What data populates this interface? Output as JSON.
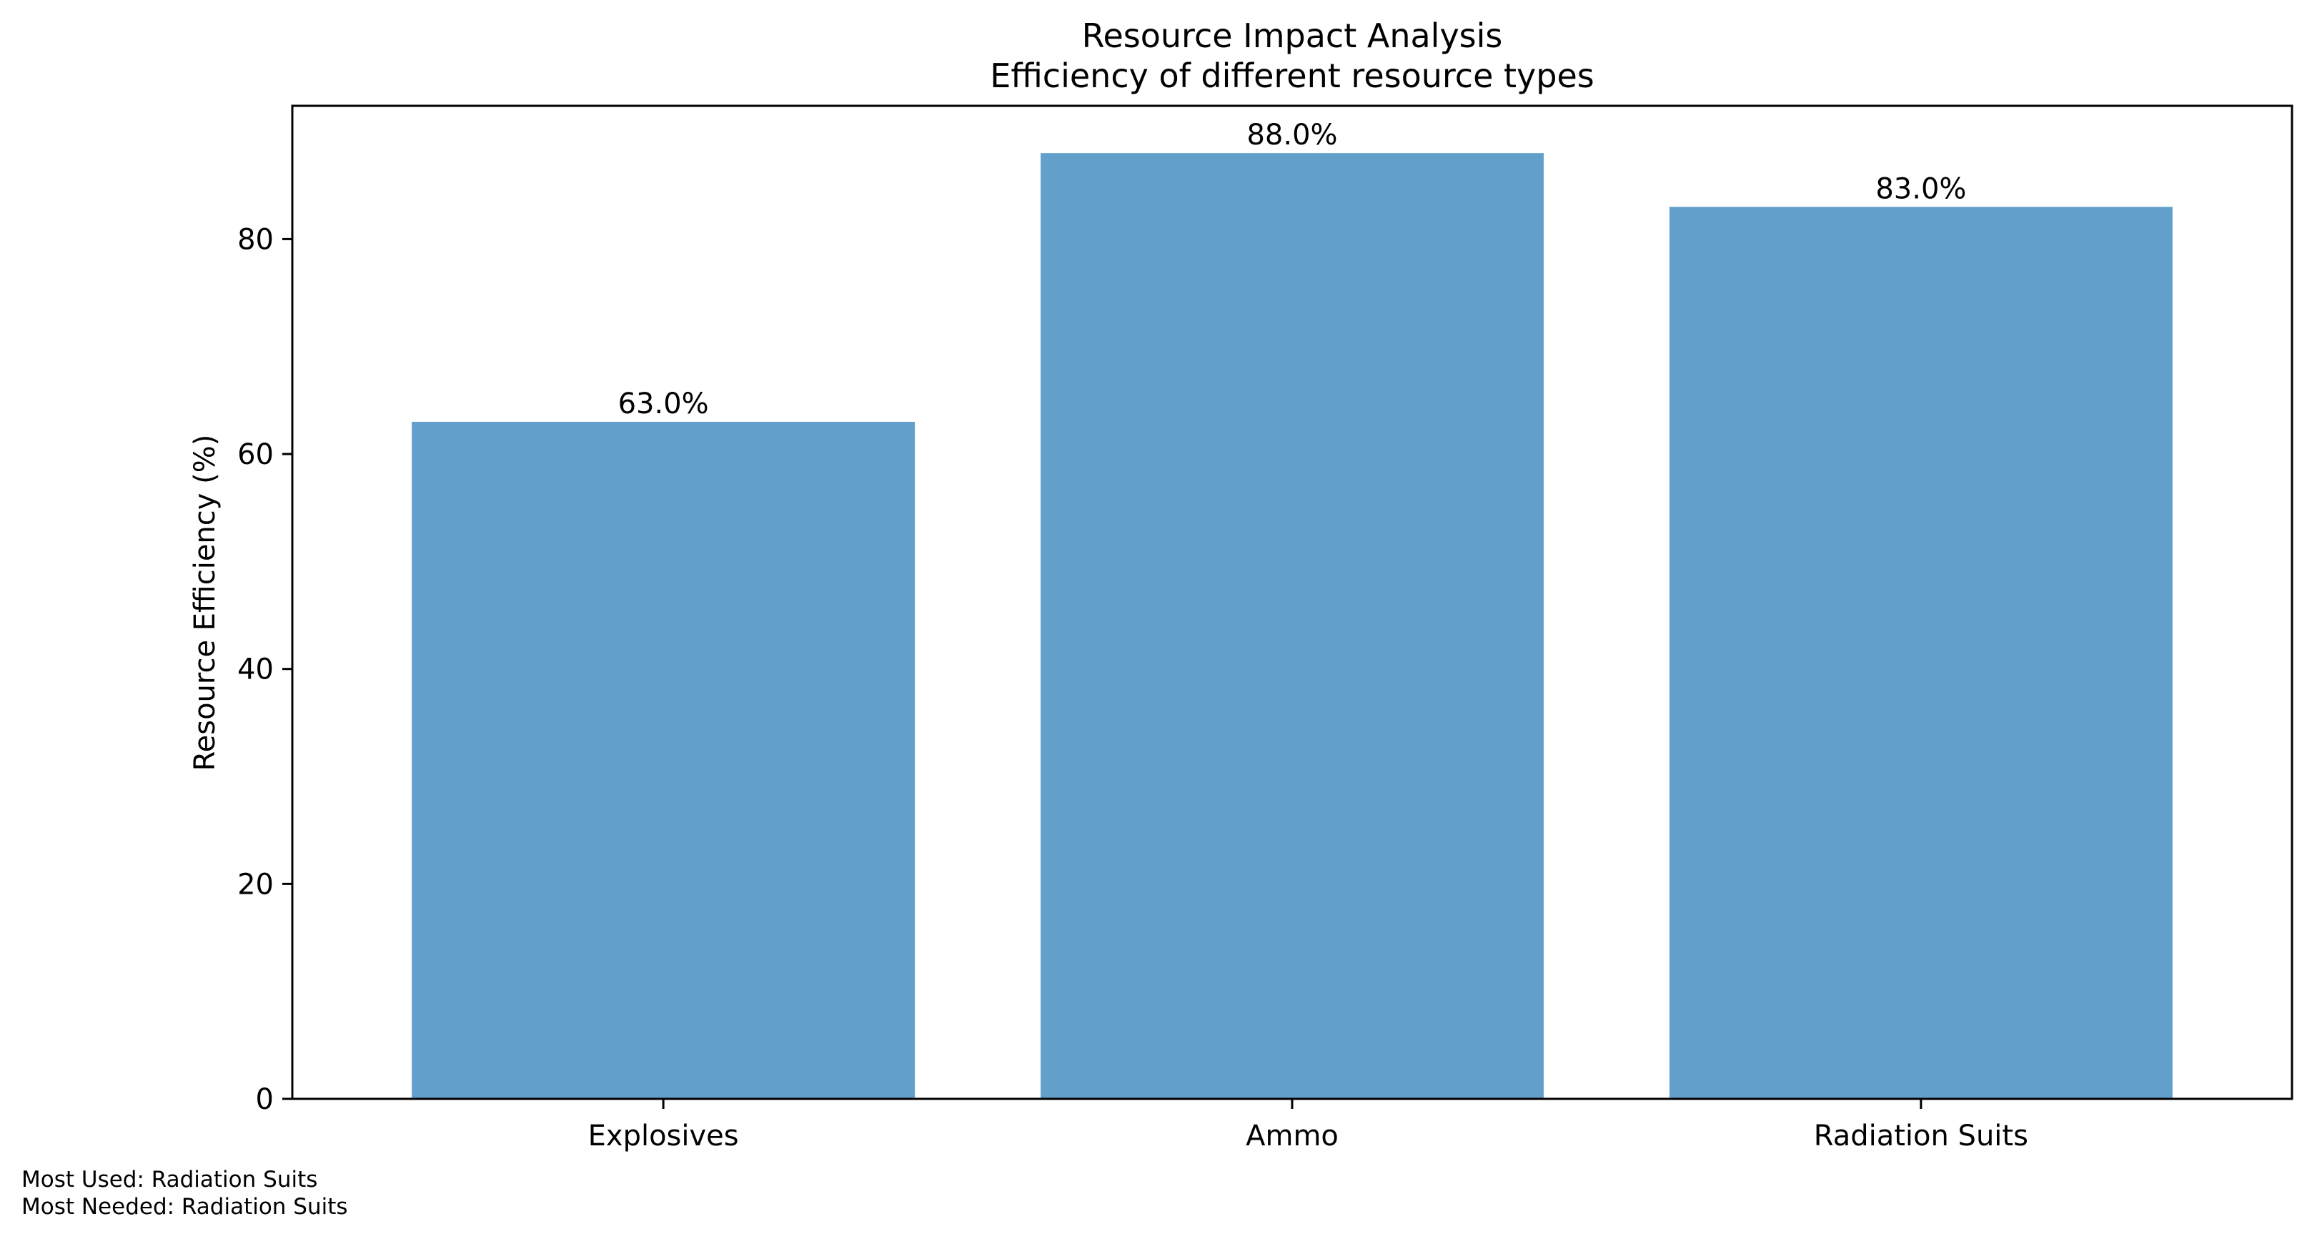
{
  "chart_data": {
    "type": "bar",
    "title": "Resource Impact Analysis",
    "subtitle": "Efficiency of different resource types",
    "xlabel": "",
    "ylabel": "Resource Efficiency (%)",
    "categories": [
      "Explosives",
      "Ammo",
      "Radiation Suits"
    ],
    "values": [
      63.0,
      88.0,
      83.0
    ],
    "data_labels": [
      "63.0%",
      "88.0%",
      "83.0%"
    ],
    "ylim": [
      0,
      92.4
    ],
    "yticks": [
      0,
      20,
      40,
      60,
      80
    ],
    "ytick_labels": [
      "0",
      "20",
      "40",
      "60",
      "80"
    ],
    "grid": false,
    "legend": "none",
    "bar_color": "#62a0cb",
    "bar_width_fraction": 0.8
  },
  "footnotes": [
    "Most Used: Radiation Suits",
    "Most Needed: Radiation Suits"
  ]
}
